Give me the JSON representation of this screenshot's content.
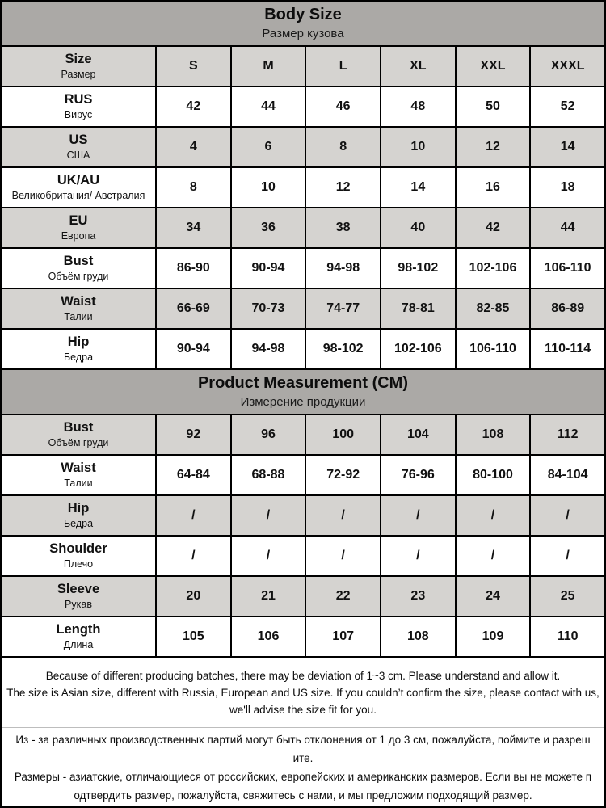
{
  "colors": {
    "header_bg": "#aba9a6",
    "shade_row_bg": "#d5d3d0",
    "row_bg": "#ffffff",
    "grid_border": "#000000",
    "footer_divider": "#bdbdbd"
  },
  "body_size": {
    "title_en": "Body Size",
    "title_ru": "Размер кузова",
    "rows": [
      {
        "en": "Size",
        "ru": "Размер",
        "values": [
          "S",
          "M",
          "L",
          "XL",
          "XXL",
          "XXXL"
        ],
        "shaded": true
      },
      {
        "en": "RUS",
        "ru": "Вирус",
        "values": [
          "42",
          "44",
          "46",
          "48",
          "50",
          "52"
        ],
        "shaded": false
      },
      {
        "en": "US",
        "ru": "США",
        "values": [
          "4",
          "6",
          "8",
          "10",
          "12",
          "14"
        ],
        "shaded": true
      },
      {
        "en": "UK/AU",
        "ru": "Великобритания/ Австралия",
        "values": [
          "8",
          "10",
          "12",
          "14",
          "16",
          "18"
        ],
        "shaded": false
      },
      {
        "en": "EU",
        "ru": "Европа",
        "values": [
          "34",
          "36",
          "38",
          "40",
          "42",
          "44"
        ],
        "shaded": true
      },
      {
        "en": "Bust",
        "ru": "Объём груди",
        "values": [
          "86-90",
          "90-94",
          "94-98",
          "98-102",
          "102-106",
          "106-110"
        ],
        "shaded": false
      },
      {
        "en": "Waist",
        "ru": "Талии",
        "values": [
          "66-69",
          "70-73",
          "74-77",
          "78-81",
          "82-85",
          "86-89"
        ],
        "shaded": true
      },
      {
        "en": "Hip",
        "ru": "Бедра",
        "values": [
          "90-94",
          "94-98",
          "98-102",
          "102-106",
          "106-110",
          "110-114"
        ],
        "shaded": false
      }
    ]
  },
  "product_measurement": {
    "title_en": "Product Measurement (CM)",
    "title_ru": "Измерение продукции",
    "rows": [
      {
        "en": "Bust",
        "ru": "Объём груди",
        "values": [
          "92",
          "96",
          "100",
          "104",
          "108",
          "112"
        ],
        "shaded": true
      },
      {
        "en": "Waist",
        "ru": "Талии",
        "values": [
          "64-84",
          "68-88",
          "72-92",
          "76-96",
          "80-100",
          "84-104"
        ],
        "shaded": false
      },
      {
        "en": "Hip",
        "ru": "Бедра",
        "values": [
          "/",
          "/",
          "/",
          "/",
          "/",
          "/"
        ],
        "shaded": true
      },
      {
        "en": "Shoulder",
        "ru": "Плечо",
        "values": [
          "/",
          "/",
          "/",
          "/",
          "/",
          "/"
        ],
        "shaded": false
      },
      {
        "en": "Sleeve",
        "ru": "Рукав",
        "values": [
          "20",
          "21",
          "22",
          "23",
          "24",
          "25"
        ],
        "shaded": true
      },
      {
        "en": "Length",
        "ru": "Длина",
        "values": [
          "105",
          "106",
          "107",
          "108",
          "109",
          "110"
        ],
        "shaded": false
      }
    ]
  },
  "footer": {
    "en_lines": [
      "Because of different producing batches, there may be deviation of 1~3 cm. Please understand and allow it.",
      "The size is Asian size, different with Russia, European and US size. If you couldn’t confirm the size, please contact with us,",
      "we'll advise the size fit for you."
    ],
    "ru_lines": [
      "Из - за различных производственных партий могут быть отклонения от 1 до 3 см, пожалуйста, поймите и разреш",
      "ите.",
      "Размеры - азиатские, отличающиеся от российских, европейских и американских размеров. Если вы не можете п",
      "одтвердить размер, пожалуйста, свяжитесь с нами, и мы предложим подходящий размер."
    ]
  }
}
